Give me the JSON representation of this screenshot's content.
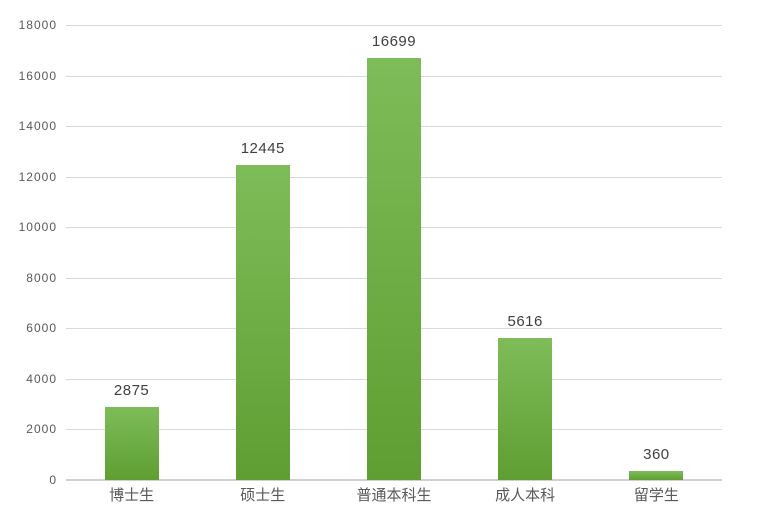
{
  "chart_data": {
    "type": "bar",
    "title": "",
    "xlabel": "",
    "ylabel": "",
    "categories": [
      "博士生",
      "硕士生",
      "普通本科生",
      "成人本科",
      "留学生"
    ],
    "values": [
      2875,
      12445,
      16699,
      5616,
      360
    ],
    "value_labels": [
      "2875",
      "12445",
      "16699",
      "5616",
      "360"
    ],
    "ylim": [
      0,
      18000
    ],
    "ytick_step": 2000,
    "y_ticks": [
      0,
      2000,
      4000,
      6000,
      8000,
      10000,
      12000,
      14000,
      16000,
      18000
    ],
    "grid": true,
    "legend": "none",
    "value_labels_shown": true
  },
  "colors": {
    "background": "#ffffff",
    "grid_line": "#d9d9d9",
    "axis_line": "#d0cece",
    "tick_label": "#595959",
    "category_label": "#595959",
    "value_label": "#404040",
    "bar_gradient_top": "#7ebc59",
    "bar_gradient_bottom": "#5f9e32"
  }
}
